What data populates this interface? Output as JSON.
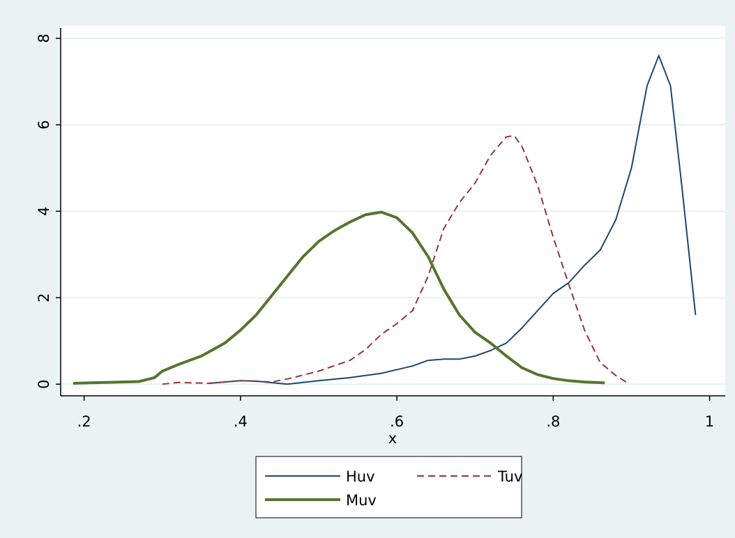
{
  "chart_data": {
    "type": "line",
    "x_label": "x",
    "xlim": [
      0.17,
      1.02
    ],
    "ylim": [
      -0.27,
      8.29
    ],
    "xticks": [
      {
        "value": 0.2,
        "label": ".2"
      },
      {
        "value": 0.4,
        "label": ".4"
      },
      {
        "value": 0.6,
        "label": ".6"
      },
      {
        "value": 0.8,
        "label": ".8"
      },
      1
    ],
    "yticks": [
      0,
      2,
      4,
      6,
      8
    ],
    "grid": true,
    "legend": "bottom",
    "series": [
      {
        "name": "Huv",
        "color": "#1a476f",
        "dash": false,
        "width": 2,
        "x": [
          0.36,
          0.4,
          0.42,
          0.46,
          0.5,
          0.54,
          0.58,
          0.62,
          0.64,
          0.66,
          0.68,
          0.7,
          0.72,
          0.74,
          0.76,
          0.78,
          0.8,
          0.82,
          0.84,
          0.86,
          0.88,
          0.9,
          0.92,
          0.935,
          0.95,
          0.965,
          0.982
        ],
        "values": [
          0.02,
          0.08,
          0.07,
          0.0,
          0.08,
          0.15,
          0.25,
          0.42,
          0.55,
          0.58,
          0.58,
          0.65,
          0.78,
          0.95,
          1.3,
          1.7,
          2.1,
          2.35,
          2.75,
          3.1,
          3.8,
          5.0,
          6.9,
          7.6,
          6.9,
          4.5,
          1.6
        ]
      },
      {
        "name": "Tuv",
        "color": "#90353b",
        "dash": true,
        "width": 2,
        "x": [
          0.3,
          0.32,
          0.36,
          0.4,
          0.44,
          0.46,
          0.5,
          0.54,
          0.56,
          0.58,
          0.6,
          0.62,
          0.64,
          0.66,
          0.68,
          0.7,
          0.72,
          0.74,
          0.75,
          0.76,
          0.78,
          0.8,
          0.82,
          0.84,
          0.86,
          0.88,
          0.895
        ],
        "values": [
          0.0,
          0.04,
          0.02,
          0.08,
          0.05,
          0.12,
          0.3,
          0.55,
          0.8,
          1.15,
          1.4,
          1.7,
          2.5,
          3.6,
          4.2,
          4.65,
          5.3,
          5.72,
          5.75,
          5.5,
          4.6,
          3.4,
          2.3,
          1.25,
          0.5,
          0.2,
          0.03
        ]
      },
      {
        "name": "Muv",
        "color": "#55752f",
        "dash": false,
        "width": 4,
        "x": [
          0.186,
          0.25,
          0.27,
          0.29,
          0.3,
          0.32,
          0.35,
          0.38,
          0.4,
          0.42,
          0.44,
          0.46,
          0.48,
          0.5,
          0.52,
          0.54,
          0.56,
          0.58,
          0.6,
          0.62,
          0.64,
          0.66,
          0.68,
          0.7,
          0.72,
          0.74,
          0.76,
          0.78,
          0.8,
          0.82,
          0.84,
          0.866
        ],
        "values": [
          0.02,
          0.05,
          0.06,
          0.15,
          0.3,
          0.45,
          0.65,
          0.95,
          1.25,
          1.6,
          2.05,
          2.5,
          2.95,
          3.3,
          3.55,
          3.75,
          3.92,
          3.98,
          3.85,
          3.5,
          2.95,
          2.2,
          1.6,
          1.2,
          0.95,
          0.65,
          0.38,
          0.22,
          0.13,
          0.08,
          0.05,
          0.03
        ]
      }
    ]
  }
}
